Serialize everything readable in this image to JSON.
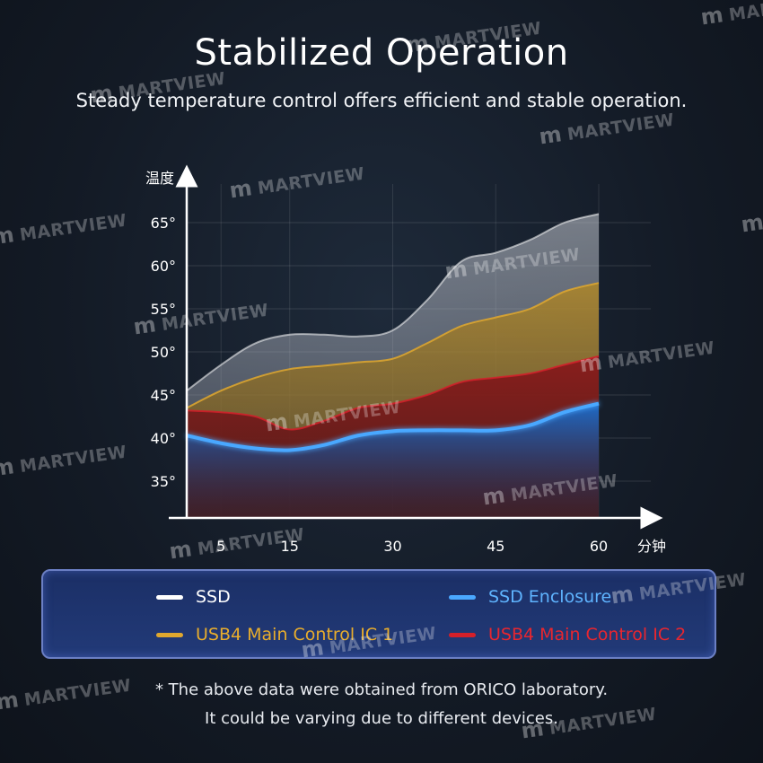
{
  "header": {
    "title": "Stabilized Operation",
    "subtitle": "Steady temperature control offers efficient and stable operation."
  },
  "chart_data": {
    "type": "area",
    "ylabel": "温度",
    "xlabel": "分钟",
    "x_ticks": [
      "5",
      "15",
      "30",
      "45",
      "60"
    ],
    "y_ticks": [
      "35°",
      "40°",
      "45°",
      "50°",
      "55°",
      "60°",
      "65°"
    ],
    "xlim": [
      0,
      63
    ],
    "ylim": [
      30,
      68
    ],
    "grid": true,
    "series": [
      {
        "name": "SSD",
        "color": "#ffffff",
        "x": [
          0,
          5,
          10,
          15,
          20,
          25,
          30,
          35,
          40,
          45,
          50,
          55,
          60
        ],
        "y": [
          45.5,
          48.5,
          51,
          52,
          52,
          51.8,
          52.5,
          56,
          60.5,
          61.5,
          63,
          65,
          66
        ]
      },
      {
        "name": "USB4 Main Control IC 1",
        "color": "#e0a82e",
        "x": [
          0,
          5,
          10,
          15,
          20,
          25,
          30,
          35,
          40,
          45,
          50,
          55,
          60
        ],
        "y": [
          43.5,
          45.5,
          47,
          48,
          48.4,
          48.8,
          49.2,
          51,
          53,
          54,
          55,
          57,
          58
        ]
      },
      {
        "name": "USB4 Main Control IC 2",
        "color": "#d4202a",
        "x": [
          0,
          5,
          10,
          15,
          20,
          25,
          30,
          35,
          40,
          45,
          50,
          55,
          60
        ],
        "y": [
          43.2,
          43,
          42.5,
          41,
          42,
          43.5,
          44,
          45,
          46.5,
          47,
          47.5,
          48.5,
          49.5
        ]
      },
      {
        "name": "SSD Enclosure",
        "color": "#4aa8ff",
        "x": [
          0,
          5,
          10,
          15,
          20,
          25,
          30,
          35,
          40,
          45,
          50,
          55,
          60
        ],
        "y": [
          40.3,
          39.4,
          38.8,
          38.6,
          39.2,
          40.3,
          40.8,
          40.9,
          40.9,
          40.9,
          41.5,
          43,
          44
        ]
      }
    ]
  },
  "legend": {
    "items": [
      {
        "label": "SSD",
        "color": "#ffffff",
        "text_color": "#ffffff"
      },
      {
        "label": "SSD Enclosure",
        "color": "#4aa8ff",
        "text_color": "#5fb4ff"
      },
      {
        "label": "USB4 Main Control IC 1",
        "color": "#e0a82e",
        "text_color": "#e8ad2c"
      },
      {
        "label": "USB4 Main Control IC 2",
        "color": "#d4202a",
        "text_color": "#e8262f"
      }
    ]
  },
  "footnote": {
    "line1": "* The above data were obtained from ORICO laboratory.",
    "line2": "It could be varying due to different devices."
  },
  "watermark": {
    "text": "MARTVIEW",
    "logo": "m"
  }
}
